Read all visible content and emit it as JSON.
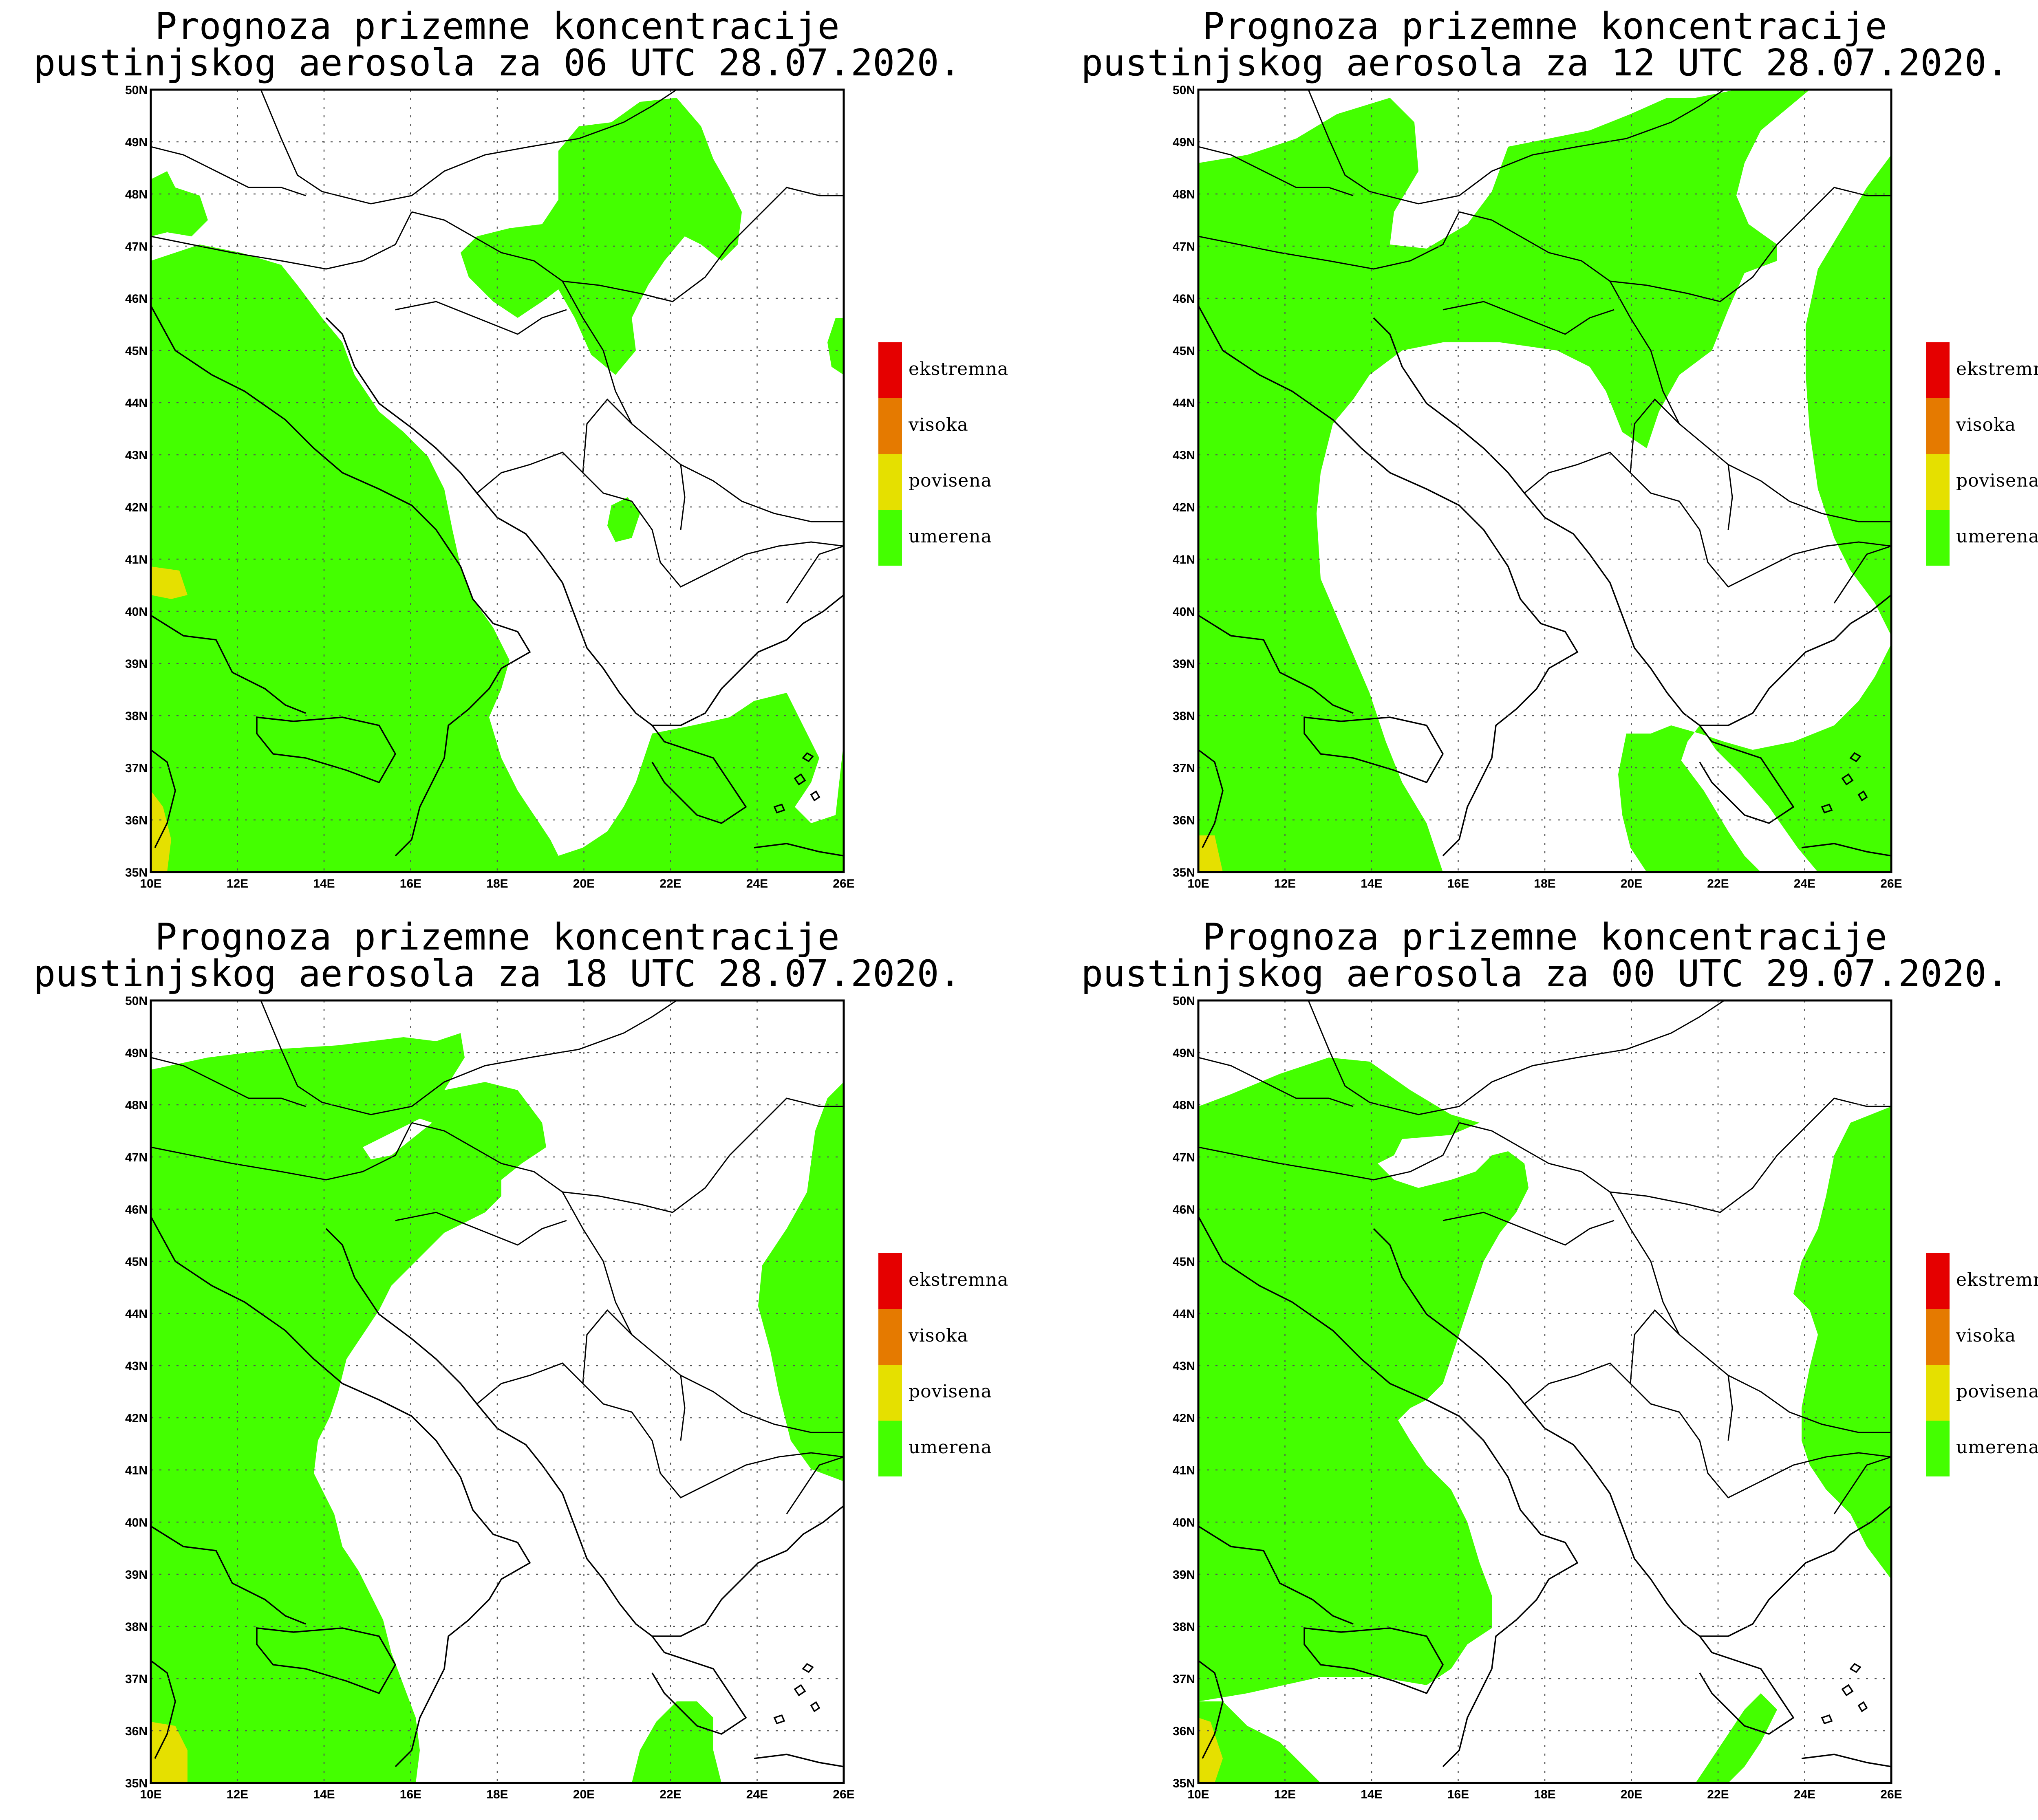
{
  "panels": [
    {
      "title_line1": "Prognoza prizemne koncentracije",
      "title_line2": "pustinjskog aerosola za 06 UTC 28.07.2020."
    },
    {
      "title_line1": "Prognoza prizemne koncentracije",
      "title_line2": "pustinjskog aerosola za 12 UTC 28.07.2020."
    },
    {
      "title_line1": "Prognoza prizemne koncentracije",
      "title_line2": "pustinjskog aerosola za 18 UTC 28.07.2020."
    },
    {
      "title_line1": "Prognoza prizemne koncentracije",
      "title_line2": "pustinjskog aerosola za 00 UTC 29.07.2020."
    }
  ],
  "axes": {
    "lon_range": [
      10,
      26
    ],
    "lat_range": [
      35,
      50
    ],
    "lon_labels": [
      "10E",
      "12E",
      "14E",
      "16E",
      "18E",
      "20E",
      "22E",
      "24E",
      "26E"
    ],
    "lat_labels": [
      "35N",
      "36N",
      "37N",
      "38N",
      "39N",
      "40N",
      "41N",
      "42N",
      "43N",
      "44N",
      "45N",
      "46N",
      "47N",
      "48N",
      "49N",
      "50N"
    ]
  },
  "legend": [
    {
      "label": "ekstremna",
      "color": "#e50000"
    },
    {
      "label": "visoka",
      "color": "#e57a00"
    },
    {
      "label": "povisena",
      "color": "#e5e000"
    },
    {
      "label": "umerena",
      "color": "#44ff00"
    }
  ],
  "colors": {
    "umerena": "#44ff00",
    "povisena": "#e5e000"
  }
}
